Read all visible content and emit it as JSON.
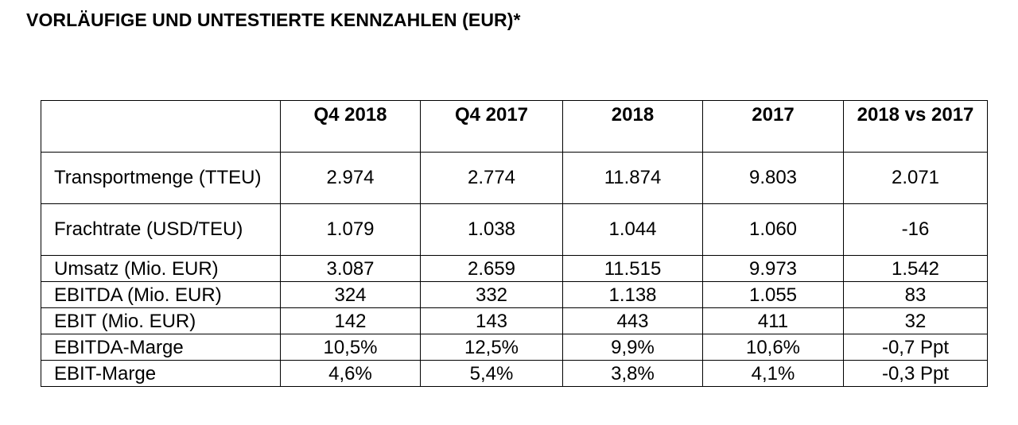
{
  "title": "VORLÄUFIGE UND UNTESTIERTE KENNZAHLEN (EUR)*",
  "table": {
    "headers": [
      "",
      "Q4 2018",
      "Q4 2017",
      "2018",
      "2017",
      "2018 vs 2017"
    ],
    "rows": [
      {
        "label": "Transportmenge (TTEU)",
        "values": [
          "2.974",
          "2.774",
          "11.874",
          "9.803",
          "2.071"
        ]
      },
      {
        "label": "Frachtrate (USD/TEU)",
        "values": [
          "1.079",
          "1.038",
          "1.044",
          "1.060",
          "-16"
        ]
      },
      {
        "label": "Umsatz (Mio. EUR)",
        "values": [
          "3.087",
          "2.659",
          "11.515",
          "9.973",
          "1.542"
        ]
      },
      {
        "label": "EBITDA (Mio. EUR)",
        "values": [
          "324",
          "332",
          "1.138",
          "1.055",
          "83"
        ]
      },
      {
        "label": "EBIT (Mio. EUR)",
        "values": [
          "142",
          "143",
          "443",
          "411",
          "32"
        ]
      },
      {
        "label": "EBITDA-Marge",
        "values": [
          "10,5%",
          "12,5%",
          "9,9%",
          "10,6%",
          "-0,7 Ppt"
        ]
      },
      {
        "label": "EBIT-Marge",
        "values": [
          "4,6%",
          "5,4%",
          "3,8%",
          "4,1%",
          "-0,3 Ppt"
        ]
      }
    ]
  }
}
